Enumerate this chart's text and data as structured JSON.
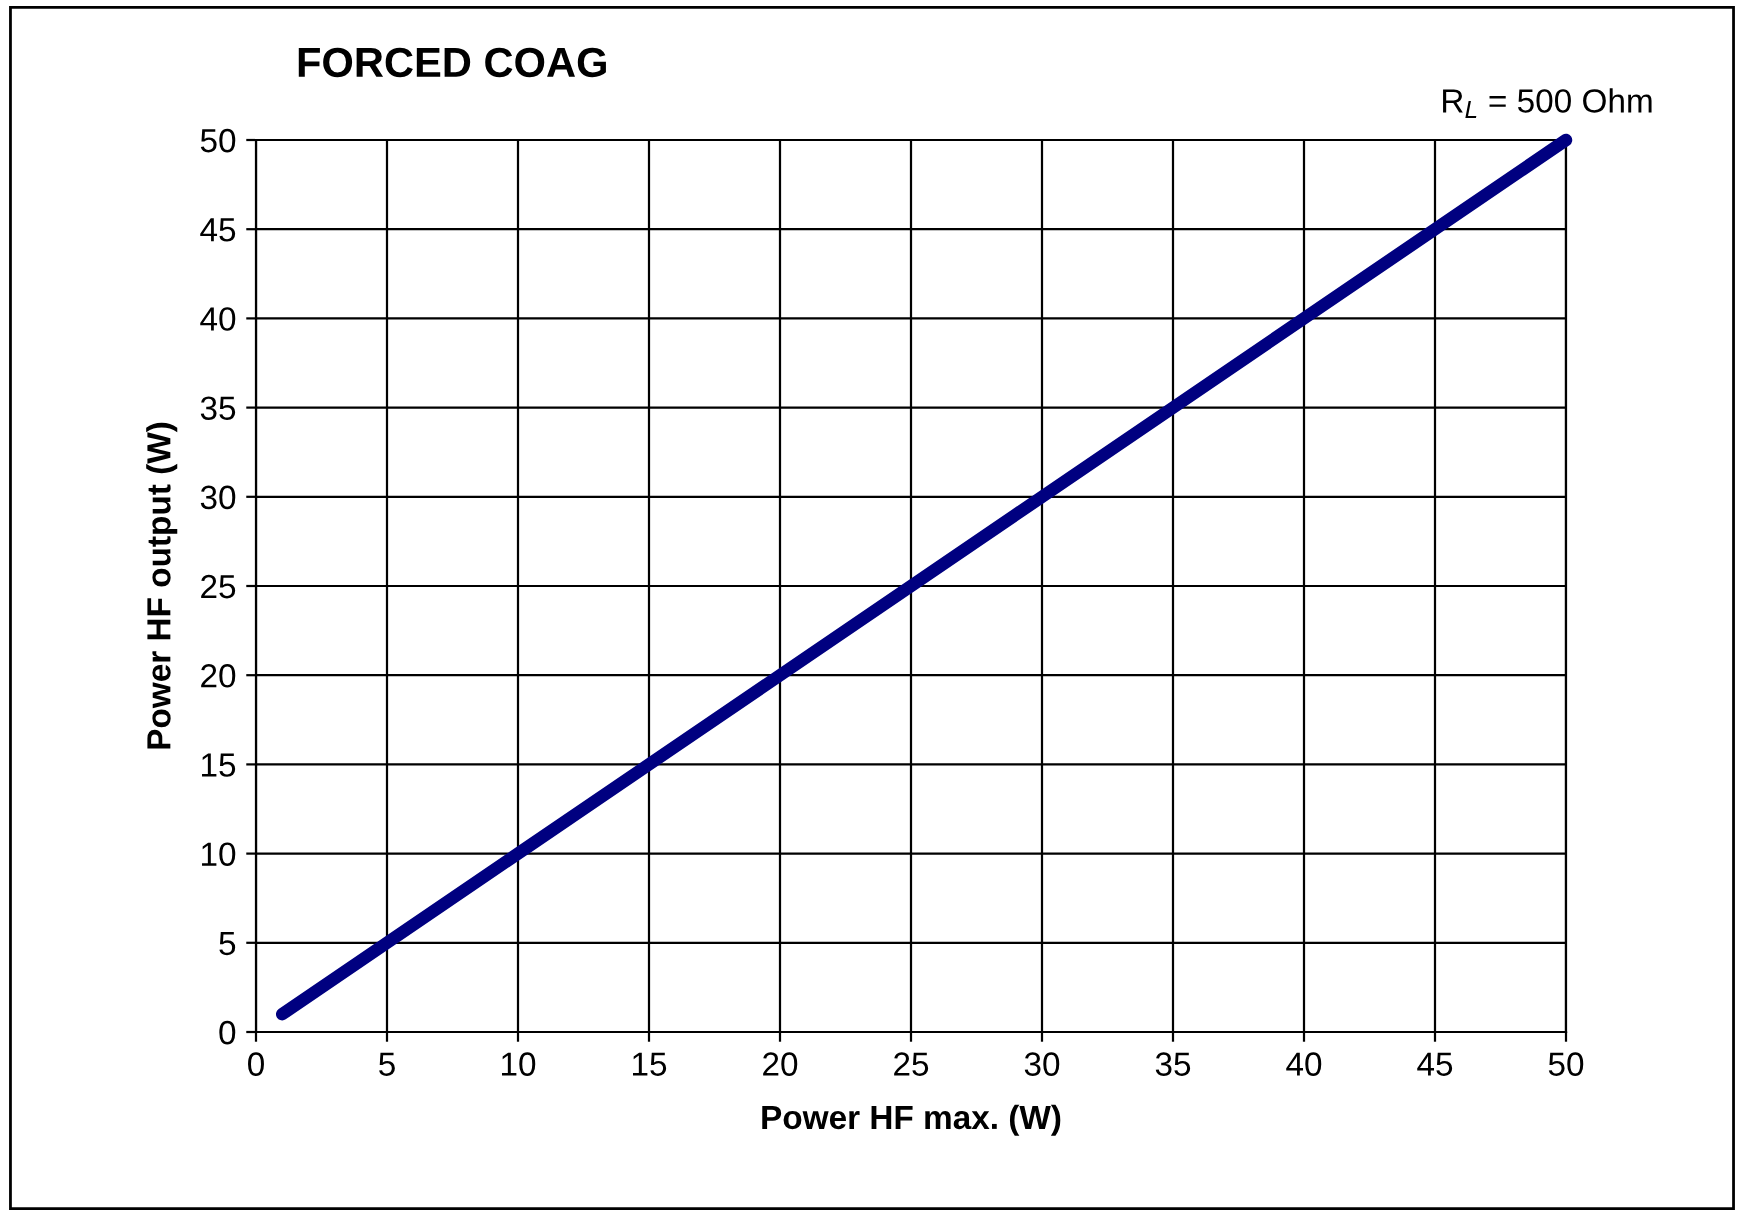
{
  "chart_data": {
    "type": "line",
    "title": "FORCED COAG",
    "xlabel": "Power HF max. (W)",
    "ylabel": "Power HF output (W)",
    "annotations": [
      "R$_{L}$ = 500 Ohm"
    ],
    "x": [
      1,
      50
    ],
    "series": [
      {
        "color": "#000080",
        "values": [
          1,
          50
        ]
      }
    ],
    "xlim": [
      0,
      50
    ],
    "ylim": [
      0,
      50
    ],
    "xticks": [
      0,
      5,
      10,
      15,
      20,
      25,
      30,
      35,
      40,
      45,
      50
    ],
    "yticks": [
      0,
      5,
      10,
      15,
      20,
      25,
      30,
      35,
      40,
      45,
      50
    ],
    "grid": true,
    "marker": "none",
    "line_style": "solid"
  }
}
